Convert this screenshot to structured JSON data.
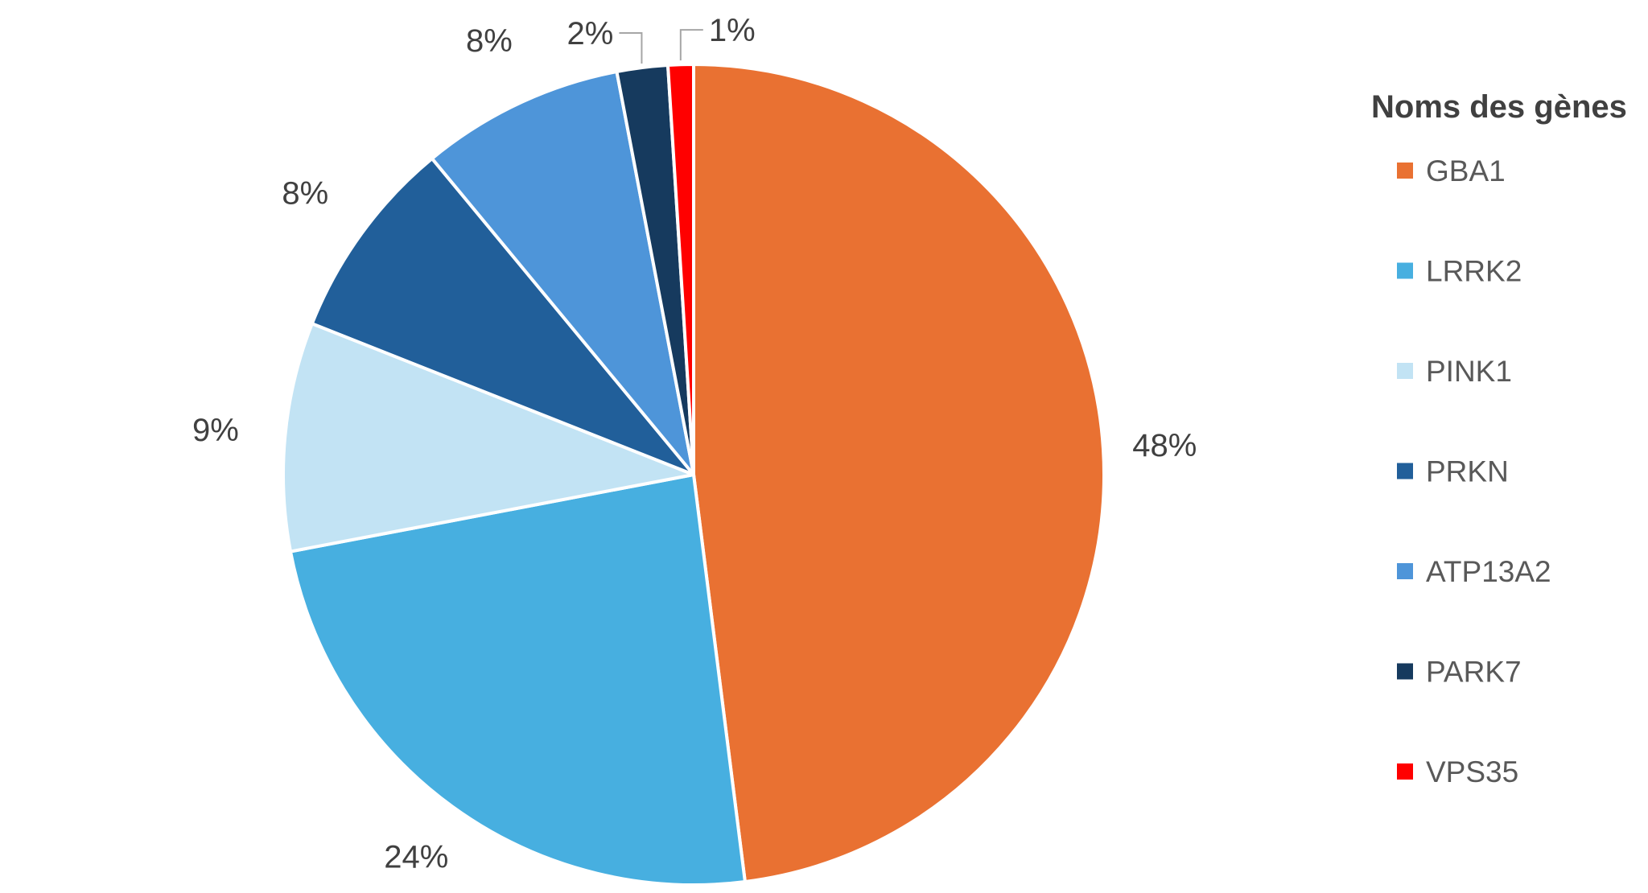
{
  "chart_data": {
    "type": "pie",
    "legend_title": "Noms des gènes",
    "legend_position": "right",
    "categories": [
      "GBA1",
      "LRRK2",
      "PINK1",
      "PRKN",
      "ATP13A2",
      "PARK7",
      "VPS35"
    ],
    "values": [
      48,
      24,
      9,
      8,
      8,
      2,
      1
    ],
    "labels": [
      "48%",
      "24%",
      "9%",
      "8%",
      "8%",
      "2%",
      "1%"
    ],
    "colors": [
      "#E97132",
      "#47AFE0",
      "#C2E3F4",
      "#215F9A",
      "#4E95D9",
      "#163A5E",
      "#FF0000"
    ]
  }
}
